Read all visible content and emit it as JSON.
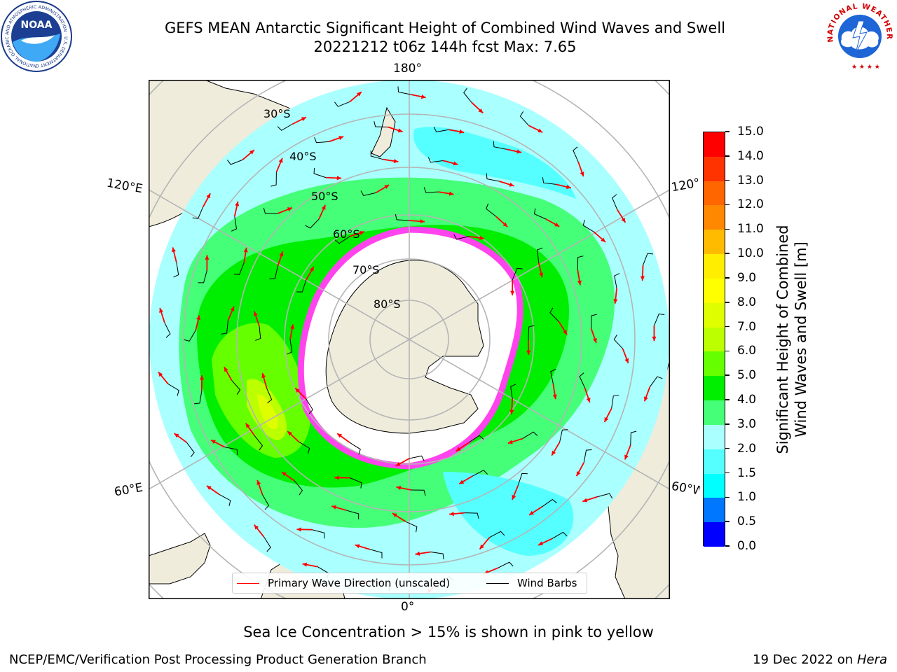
{
  "header": {
    "title_line1": "GEFS MEAN Antarctic Significant Height of Combined Wind Waves and Swell",
    "title_line2": "20221212 t06z 144h fcst   Max: 7.65"
  },
  "logos": {
    "noaa_text": "NOAA",
    "noaa_ring_text": "NATIONAL OCEANIC AND ATMOSPHERIC ADMINISTRATION · U.S. DEPARTMENT OF COMMERCE",
    "nws_ring_text": "NATIONAL WEATHER SERVICE"
  },
  "map": {
    "longitude_labels": {
      "top": "180°",
      "bottom": "0°",
      "left_upper": "120°E",
      "left_lower": "60°E",
      "right_upper": "120°W",
      "right_lower": "60°W"
    },
    "latitude_labels": [
      "30°S",
      "40°S",
      "50°S",
      "60°S",
      "70°S",
      "80°S"
    ],
    "colors": {
      "land": "#efecdc",
      "ice": "#ffffff",
      "sea_ice_edge": "#ff44ee",
      "grid": "#b5b5b5",
      "wave_arrow": "#ff0000",
      "wind_barb": "#000000"
    }
  },
  "colorbar": {
    "label_line1": "Significant Height of Combined",
    "label_line2": "Wind Waves and Swell [m]",
    "ticks": [
      "0.0",
      "0.5",
      "1.0",
      "1.5",
      "2.0",
      "3.0",
      "4.0",
      "5.0",
      "6.0",
      "7.0",
      "8.0",
      "9.0",
      "10.0",
      "11.0",
      "12.0",
      "13.0",
      "14.0",
      "15.0"
    ],
    "colors": [
      "#0000ff",
      "#0077ff",
      "#00ffff",
      "#55ffff",
      "#aaffff",
      "#44ff77",
      "#00ee00",
      "#66ff00",
      "#bbff00",
      "#dfff00",
      "#ffff00",
      "#ffee00",
      "#ffbb00",
      "#ff8800",
      "#ff6600",
      "#ff3300",
      "#ff0000"
    ]
  },
  "legend": {
    "primary_wave": "Primary Wave Direction (unscaled)",
    "wind_barbs": "Wind Barbs"
  },
  "footer": {
    "subtitle": "Sea Ice Concentration > 15% is shown in pink to yellow",
    "left": "NCEP/EMC/Verification Post Processing Product Generation Branch",
    "right_date": "19 Dec 2022 on",
    "right_machine": "Hera"
  }
}
